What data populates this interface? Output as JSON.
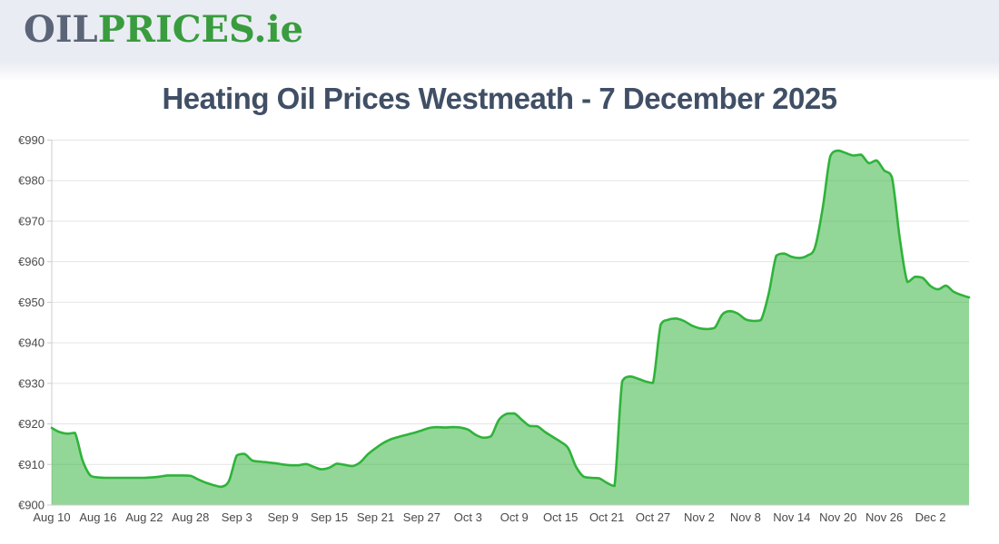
{
  "header": {
    "logo_oil": "OIL",
    "logo_prices": "PRICES",
    "logo_suffix": ".ie"
  },
  "title": "Heating Oil Prices Westmeath - 7 December 2025",
  "chart_data": {
    "type": "area",
    "title": "Heating Oil Prices Westmeath - 7 December 2025",
    "x_start": "Aug 10",
    "x_end": "Dec 7",
    "frequency": "daily",
    "x_tick_labels": [
      "Aug 10",
      "Aug 16",
      "Aug 22",
      "Aug 28",
      "Sep 3",
      "Sep 9",
      "Sep 15",
      "Sep 21",
      "Sep 27",
      "Oct 3",
      "Oct 9",
      "Oct 15",
      "Oct 21",
      "Oct 27",
      "Nov 2",
      "Nov 8",
      "Nov 14",
      "Nov 20",
      "Nov 26",
      "Dec 2"
    ],
    "x_tick_every_days": 6,
    "y_ticks": [
      900,
      910,
      920,
      930,
      940,
      950,
      960,
      970,
      980,
      990
    ],
    "y_tick_prefix": "€",
    "ylim": [
      900,
      990
    ],
    "unit": "EUR per 1000 litres",
    "values": [
      919.0,
      918.0,
      917.6,
      917.8,
      911.0,
      907.3,
      906.8,
      906.7,
      906.7,
      906.7,
      906.7,
      906.7,
      906.7,
      906.8,
      907.0,
      907.3,
      907.3,
      907.3,
      907.2,
      906.3,
      905.5,
      904.9,
      904.5,
      906.0,
      912.2,
      912.6,
      911.0,
      910.7,
      910.5,
      910.3,
      910.0,
      909.8,
      909.8,
      910.1,
      909.4,
      908.8,
      909.2,
      910.2,
      909.9,
      909.6,
      910.5,
      912.5,
      914.0,
      915.3,
      916.2,
      916.8,
      917.3,
      917.8,
      918.4,
      919.0,
      919.2,
      919.1,
      919.2,
      919.1,
      918.6,
      917.3,
      916.6,
      917.0,
      921.0,
      922.5,
      922.6,
      921.0,
      919.5,
      919.4,
      918.0,
      916.8,
      915.6,
      914.0,
      909.5,
      907.0,
      906.7,
      906.6,
      905.5,
      904.7,
      930.5,
      931.7,
      931.2,
      930.5,
      930.1,
      944.5,
      945.7,
      946.0,
      945.4,
      944.3,
      943.6,
      943.4,
      943.7,
      947.0,
      947.8,
      947.2,
      945.8,
      945.4,
      945.6,
      952.0,
      961.5,
      962.0,
      961.2,
      960.9,
      961.5,
      963.5,
      973.0,
      986.0,
      987.4,
      986.8,
      986.2,
      986.4,
      984.3,
      985.0,
      982.5,
      980.8,
      966.0,
      955.0,
      956.3,
      956.0,
      954.0,
      953.2,
      954.1,
      952.6,
      951.8,
      951.2
    ],
    "grid": true,
    "legend": "none",
    "line_color": "#2fb33a",
    "fill_color": "rgba(47,179,58,0.52)",
    "grid_color": "#e4e4e4",
    "axis_line_color": "#cccccc",
    "axis_text_color": "#4a4a4a",
    "plot_background": "#ffffff"
  }
}
